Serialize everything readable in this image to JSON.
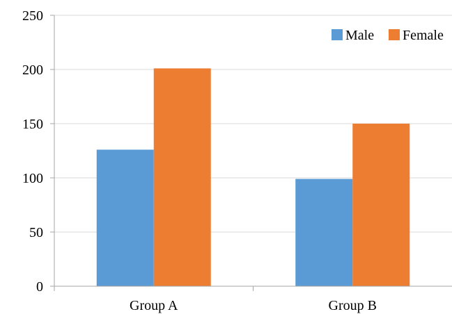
{
  "chart_data": {
    "type": "bar",
    "categories": [
      "Group A",
      "Group B"
    ],
    "series": [
      {
        "name": "Male",
        "values": [
          126,
          99
        ],
        "color": "#5b9bd5"
      },
      {
        "name": "Female",
        "values": [
          201,
          150
        ],
        "color": "#ed7d31"
      }
    ],
    "ylim": [
      0,
      250
    ],
    "yticks": [
      "0",
      "50",
      "100",
      "150",
      "200",
      "250"
    ],
    "grid": true,
    "legend_position": "top-right",
    "title": "",
    "xlabel": "",
    "ylabel": ""
  }
}
